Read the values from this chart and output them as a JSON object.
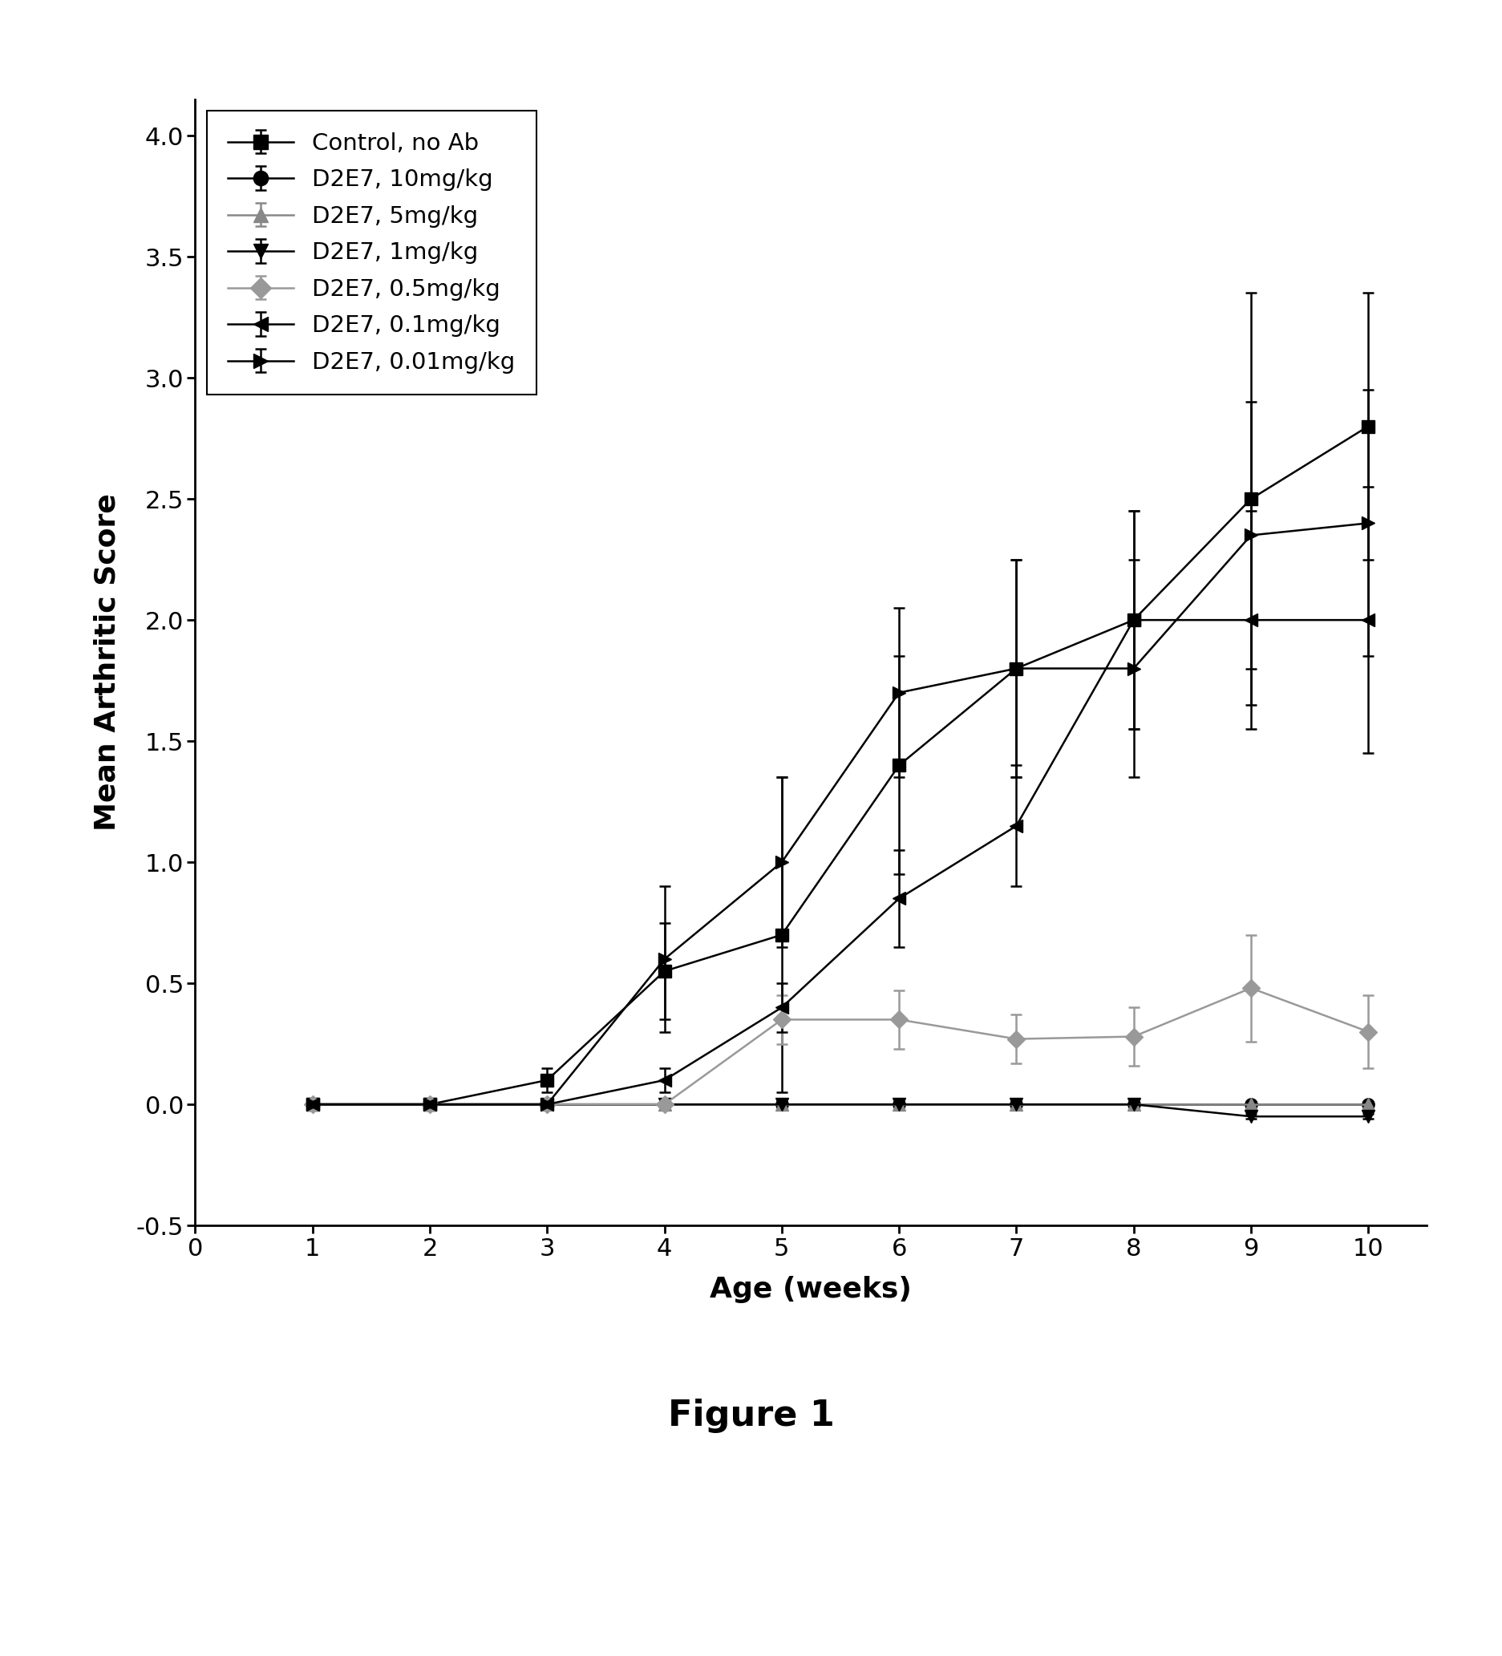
{
  "x": [
    1,
    2,
    3,
    4,
    5,
    6,
    7,
    8,
    9,
    10
  ],
  "series": [
    {
      "label": "Control, no Ab",
      "y": [
        0.0,
        0.0,
        0.1,
        0.55,
        0.7,
        1.4,
        1.8,
        2.0,
        2.5,
        2.8
      ],
      "yerr": [
        0.02,
        0.02,
        0.05,
        0.2,
        0.65,
        0.45,
        0.45,
        0.45,
        0.85,
        0.55
      ],
      "marker": "s",
      "color": "#000000",
      "markersize": 11
    },
    {
      "label": "D2E7, 10mg/kg",
      "y": [
        0.0,
        0.0,
        0.0,
        0.0,
        0.0,
        0.0,
        0.0,
        0.0,
        0.0,
        0.0
      ],
      "yerr": [
        0.01,
        0.01,
        0.01,
        0.01,
        0.01,
        0.01,
        0.01,
        0.01,
        0.01,
        0.01
      ],
      "marker": "o",
      "color": "#000000",
      "markersize": 11
    },
    {
      "label": "D2E7, 5mg/kg",
      "y": [
        0.0,
        0.0,
        0.0,
        0.0,
        0.0,
        0.0,
        0.0,
        0.0,
        0.0,
        0.0
      ],
      "yerr": [
        0.01,
        0.01,
        0.01,
        0.01,
        0.01,
        0.01,
        0.01,
        0.01,
        0.01,
        0.01
      ],
      "marker": "^",
      "color": "#888888",
      "markersize": 11
    },
    {
      "label": "D2E7, 1mg/kg",
      "y": [
        0.0,
        0.0,
        0.0,
        0.0,
        0.0,
        0.0,
        0.0,
        0.0,
        -0.05,
        -0.05
      ],
      "yerr": [
        0.01,
        0.01,
        0.01,
        0.01,
        0.01,
        0.01,
        0.01,
        0.01,
        0.01,
        0.01
      ],
      "marker": "v",
      "color": "#000000",
      "markersize": 11
    },
    {
      "label": "D2E7, 0.5mg/kg",
      "y": [
        0.0,
        0.0,
        0.0,
        0.0,
        0.35,
        0.35,
        0.27,
        0.28,
        0.48,
        0.3
      ],
      "yerr": [
        0.01,
        0.01,
        0.01,
        0.01,
        0.1,
        0.12,
        0.1,
        0.12,
        0.22,
        0.15
      ],
      "marker": "D",
      "color": "#999999",
      "markersize": 11
    },
    {
      "label": "D2E7, 0.1mg/kg",
      "y": [
        0.0,
        0.0,
        0.0,
        0.1,
        0.4,
        0.85,
        1.15,
        2.0,
        2.0,
        2.0
      ],
      "yerr": [
        0.01,
        0.01,
        0.01,
        0.05,
        0.1,
        0.2,
        0.25,
        0.45,
        0.45,
        0.55
      ],
      "marker": "<",
      "color": "#000000",
      "markersize": 11
    },
    {
      "label": "D2E7, 0.01mg/kg",
      "y": [
        0.0,
        0.0,
        0.0,
        0.6,
        1.0,
        1.7,
        1.8,
        1.8,
        2.35,
        2.4
      ],
      "yerr": [
        0.01,
        0.01,
        0.01,
        0.3,
        0.35,
        0.35,
        0.45,
        0.45,
        0.55,
        0.55
      ],
      "marker": ">",
      "color": "#000000",
      "markersize": 11
    }
  ],
  "xlabel": "Age (weeks)",
  "ylabel": "Mean Arthritic Score",
  "xlim": [
    0,
    10.5
  ],
  "ylim": [
    -0.5,
    4.15
  ],
  "ytick_values": [
    -0.5,
    0.0,
    0.5,
    1.0,
    1.5,
    2.0,
    2.5,
    3.0,
    3.5,
    4.0
  ],
  "ytick_labels": [
    "-0.5",
    "0.0",
    "0.5",
    "1.0",
    "1.5",
    "2.0",
    "2.5",
    "3.0",
    "3.5",
    "4.0"
  ],
  "xtick_values": [
    0,
    1,
    2,
    3,
    4,
    5,
    6,
    7,
    8,
    9,
    10
  ],
  "xtick_labels": [
    "0",
    "1",
    "2",
    "3",
    "4",
    "5",
    "6",
    "7",
    "8",
    "9",
    "10"
  ],
  "figure_label": "Figure 1",
  "background_color": "#ffffff"
}
